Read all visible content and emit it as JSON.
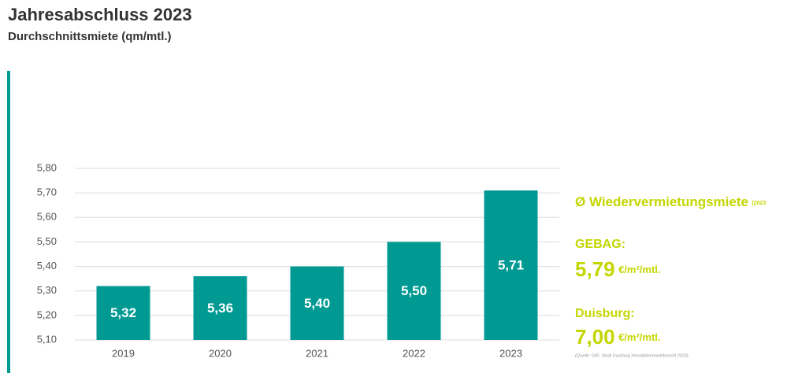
{
  "chart_data": {
    "type": "bar",
    "title": "Jahresabschluss 2023",
    "subtitle": "Durchschnittsmiete (qm/mtl.)",
    "categories": [
      "2019",
      "2020",
      "2021",
      "2022",
      "2023"
    ],
    "values": [
      5.32,
      5.36,
      5.4,
      5.5,
      5.71
    ],
    "value_labels": [
      "5,32",
      "5,36",
      "5,40",
      "5,50",
      "5,71"
    ],
    "color": "#009a93",
    "ylim": [
      5.1,
      5.8
    ],
    "yticks": [
      {
        "value": 5.1,
        "label": "5,10"
      },
      {
        "value": 5.2,
        "label": "5,20"
      },
      {
        "value": 5.3,
        "label": "5,30"
      },
      {
        "value": 5.4,
        "label": "5,40"
      },
      {
        "value": 5.5,
        "label": "5,50"
      },
      {
        "value": 5.6,
        "label": "5,60"
      },
      {
        "value": 5.7,
        "label": "5,70"
      },
      {
        "value": 5.8,
        "label": "5,80"
      }
    ],
    "grid": true
  },
  "side": {
    "heading": "Ø Wiedervermietungsmiete",
    "heading_note": "(2023",
    "gebag_label": "GEBAG:",
    "gebag_value": "5,79",
    "gebag_unit": "€/m²/mtl.",
    "duisburg_label": "Duisburg:",
    "duisburg_value": "7,00",
    "duisburg_unit": "€/m²/mtl.",
    "source": "(Quelle: DIR, Stadt Duisburg Immobilienmarktbericht 2023)"
  }
}
